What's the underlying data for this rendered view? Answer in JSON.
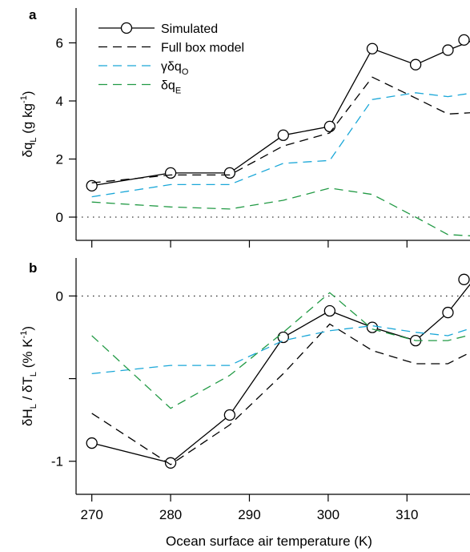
{
  "chart_data": [
    {
      "panel": "a",
      "type": "line",
      "ylabel": {
        "main": "δq",
        "sub": "L",
        "unit_pre": " (g kg",
        "unit_sup": "-1",
        "unit_post": ")"
      },
      "xlim": [
        268,
        318
      ],
      "ylim": [
        -0.8,
        7.2
      ],
      "yticks": [
        0,
        2,
        4,
        6
      ],
      "reference_line": 0,
      "legend": [
        {
          "label": "Simulated",
          "series": "simulated"
        },
        {
          "label": "Full box model",
          "series": "full_box"
        },
        {
          "label": "γδq",
          "sub": "O",
          "series": "gamma"
        },
        {
          "label": "δq",
          "sub": "E",
          "series": "dqE"
        }
      ],
      "series": [
        {
          "id": "simulated",
          "name": "Simulated",
          "color": "#000000",
          "dash": "solid",
          "markers": true,
          "x": [
            270,
            280,
            287.5,
            294.3,
            300.2,
            305.6,
            311.1,
            315.2,
            318.5
          ],
          "y": [
            1.08,
            1.52,
            1.52,
            2.82,
            3.12,
            5.8,
            5.25,
            5.75,
            6.1
          ]
        },
        {
          "id": "full_box",
          "name": "Full box model",
          "color": "#000000",
          "dash": "dashed",
          "markers": false,
          "x": [
            270,
            280,
            287.5,
            294.3,
            300.2,
            305.6,
            311.1,
            315.2,
            318.5
          ],
          "y": [
            1.18,
            1.45,
            1.45,
            2.45,
            2.9,
            4.82,
            4.1,
            3.55,
            3.6
          ]
        },
        {
          "id": "gamma",
          "name": "γδq_O",
          "color": "#1aa7d8",
          "dash": "dashed",
          "markers": false,
          "x": [
            270,
            280,
            287.5,
            294.3,
            300.2,
            305.6,
            311.1,
            315.2,
            318.5
          ],
          "y": [
            0.7,
            1.12,
            1.12,
            1.85,
            1.95,
            4.05,
            4.28,
            4.15,
            4.28
          ]
        },
        {
          "id": "dqE",
          "name": "δq_E",
          "color": "#229a45",
          "dash": "dashed",
          "markers": false,
          "x": [
            270,
            280,
            287.5,
            294.3,
            300.2,
            305.6,
            311.1,
            315.2,
            318.5
          ],
          "y": [
            0.52,
            0.35,
            0.28,
            0.58,
            1.0,
            0.78,
            0.0,
            -0.6,
            -0.65
          ]
        }
      ]
    },
    {
      "panel": "b",
      "type": "line",
      "ylabel": {
        "main1": "δH",
        "sub1": "L",
        "mid": " / δT",
        "sub2": "L",
        "unit_pre": " (% K",
        "unit_sup": "-1",
        "unit_post": ")"
      },
      "xlabel": "Ocean surface air temperature (K)",
      "xlim": [
        268,
        318
      ],
      "xticks": [
        270,
        280,
        290,
        300,
        310
      ],
      "ylim": [
        -1.2,
        0.23
      ],
      "yticks": [
        -1,
        -0.5,
        0
      ],
      "ytick_labels": [
        "-1",
        "",
        "0"
      ],
      "reference_line": 0,
      "series": [
        {
          "id": "simulated",
          "name": "Simulated",
          "color": "#000000",
          "dash": "solid",
          "markers": true,
          "x": [
            270,
            280,
            287.5,
            294.3,
            300.2,
            305.6,
            311.1,
            315.2,
            318.5
          ],
          "y": [
            -0.89,
            -1.01,
            -0.72,
            -0.25,
            -0.09,
            -0.19,
            -0.27,
            -0.1,
            0.1
          ]
        },
        {
          "id": "full_box",
          "name": "Full box model",
          "color": "#000000",
          "dash": "dashed",
          "markers": false,
          "x": [
            270,
            280,
            287.5,
            294.3,
            300.2,
            305.6,
            311.1,
            315.2,
            318.5
          ],
          "y": [
            -0.71,
            -1.02,
            -0.78,
            -0.47,
            -0.17,
            -0.33,
            -0.41,
            -0.41,
            -0.33
          ]
        },
        {
          "id": "gamma",
          "name": "γδq_O",
          "color": "#1aa7d8",
          "dash": "dashed",
          "markers": false,
          "x": [
            270,
            280,
            287.5,
            294.3,
            300.2,
            305.6,
            311.1,
            315.2,
            318.5
          ],
          "y": [
            -0.47,
            -0.42,
            -0.42,
            -0.27,
            -0.21,
            -0.18,
            -0.22,
            -0.24,
            -0.19
          ]
        },
        {
          "id": "dqE",
          "name": "δq_E",
          "color": "#229a45",
          "dash": "dashed",
          "markers": false,
          "x": [
            270,
            280,
            287.5,
            294.3,
            300.2,
            305.6,
            311.1,
            315.2,
            318.5
          ],
          "y": [
            -0.24,
            -0.68,
            -0.48,
            -0.22,
            0.02,
            -0.2,
            -0.27,
            -0.27,
            -0.23
          ]
        }
      ]
    }
  ]
}
